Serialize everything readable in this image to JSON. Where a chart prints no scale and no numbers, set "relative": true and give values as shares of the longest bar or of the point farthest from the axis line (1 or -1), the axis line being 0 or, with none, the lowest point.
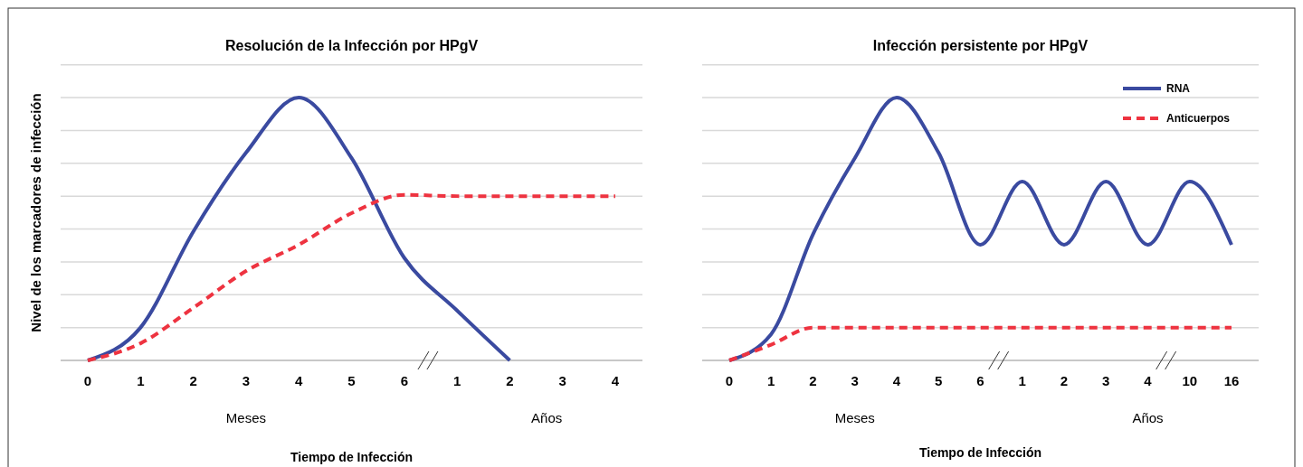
{
  "chart_data": [
    {
      "type": "line",
      "title": "Resolución de la Infección por HPgV",
      "xlabel": "Tiempo de Infección",
      "ylabel": "Nivel de los marcadores de infección",
      "categories": [
        "0",
        "1",
        "2",
        "3",
        "4",
        "5",
        "6",
        "1",
        "2",
        "3",
        "4"
      ],
      "relative": true,
      "grid": "y",
      "legend": false,
      "annotations": [
        "Meses",
        "Años"
      ],
      "series": [
        {
          "color": "#3a4aa0",
          "line_style": "solid",
          "values": [
            0,
            0.125,
            0.49,
            0.79,
            1,
            0.77,
            0.39,
            0.19,
            0,
            null,
            null
          ]
        },
        {
          "color": "#ee3340",
          "line_style": "dashed",
          "values": [
            0,
            0.065,
            0.2,
            0.34,
            0.44,
            0.56,
            0.63,
            0.625,
            0.625,
            0.625,
            0.625
          ]
        }
      ]
    },
    {
      "type": "line",
      "title": "Infección persistente por HPgV",
      "xlabel": "Tiempo de Infección",
      "categories": [
        "0",
        "1",
        "2",
        "3",
        "4",
        "5",
        "6",
        "1",
        "2",
        "3",
        "4",
        "10",
        "16"
      ],
      "relative": true,
      "grid": "y",
      "legend": "top right",
      "annotations": [
        "Meses",
        "Años"
      ],
      "series": [
        {
          "name": "RNA",
          "color": "#3a4aa0",
          "line_style": "solid",
          "values": [
            0,
            0.1,
            0.48,
            0.77,
            1,
            0.79,
            0.44,
            0.68,
            0.44,
            0.68,
            0.44,
            0.68,
            0.44
          ]
        },
        {
          "name": "Anticuerpos",
          "color": "#ee3340",
          "line_style": "dashed",
          "values": [
            0,
            0.06,
            0.125,
            0.125,
            0.125,
            0.125,
            0.125,
            0.125,
            0.125,
            0.125,
            0.125,
            0.125,
            0.125
          ]
        }
      ]
    }
  ]
}
